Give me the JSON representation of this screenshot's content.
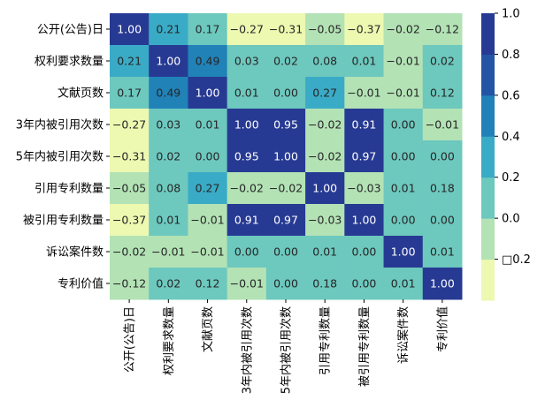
{
  "chart_data": {
    "type": "heatmap",
    "title": "",
    "xlabel": "",
    "ylabel": "",
    "labels": [
      "公开(公告)日",
      "权利要求数量",
      "文献页数",
      "3年内被引用次数",
      "5年内被引用次数",
      "引用专利数量",
      "被引用专利数量",
      "诉讼案件数",
      "专利价值"
    ],
    "values": [
      [
        1.0,
        0.21,
        0.17,
        -0.27,
        -0.31,
        -0.05,
        -0.37,
        -0.02,
        -0.12
      ],
      [
        0.21,
        1.0,
        0.49,
        0.03,
        0.02,
        0.08,
        0.01,
        -0.01,
        0.02
      ],
      [
        0.17,
        0.49,
        1.0,
        0.01,
        -0.0,
        0.27,
        -0.01,
        -0.01,
        0.12
      ],
      [
        -0.27,
        0.03,
        0.01,
        1.0,
        0.95,
        -0.02,
        0.91,
        0.0,
        -0.01
      ],
      [
        -0.31,
        0.02,
        -0.0,
        0.95,
        1.0,
        -0.02,
        0.97,
        0.0,
        -0.0
      ],
      [
        -0.05,
        0.08,
        0.27,
        -0.02,
        -0.02,
        1.0,
        -0.03,
        0.01,
        0.18
      ],
      [
        -0.37,
        0.01,
        -0.01,
        0.91,
        0.97,
        -0.03,
        1.0,
        0.0,
        -0.0
      ],
      [
        -0.02,
        -0.01,
        -0.01,
        0.0,
        0.0,
        0.01,
        0.0,
        1.0,
        0.01
      ],
      [
        -0.12,
        0.02,
        0.12,
        -0.01,
        -0.0,
        0.18,
        -0.0,
        0.01,
        1.0
      ]
    ],
    "value_format": "0.00",
    "colorbar": {
      "range": [
        -0.4,
        1.0
      ],
      "ticks": [
        1.0,
        0.8,
        0.6,
        0.4,
        0.2,
        0.0,
        -0.2
      ],
      "tick_labels": [
        "1.0",
        "0.8",
        "0.6",
        "0.4",
        "0.2",
        "0.0",
        "□0.2"
      ],
      "levels": [
        -0.4,
        -0.2,
        0.0,
        0.2,
        0.4,
        0.6,
        0.8,
        1.0
      ],
      "colors": [
        "#edf8b1",
        "#b3e2b5",
        "#6dc8be",
        "#3aabc6",
        "#2182b8",
        "#2355a4",
        "#273a93"
      ]
    },
    "colormap": "YlGnBu (discrete)"
  }
}
